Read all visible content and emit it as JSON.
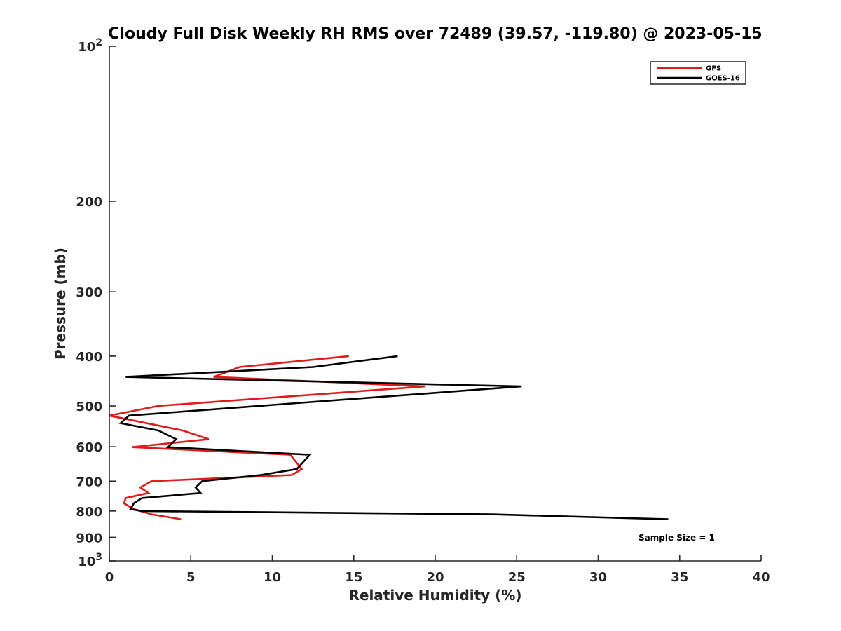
{
  "chart_data": {
    "type": "line",
    "title": "Cloudy Full Disk Weekly RH RMS over 72489 (39.57, -119.80) @ 2023-05-15",
    "xlabel": "Relative Humidity (%)",
    "ylabel": "Pressure (mb)",
    "xlim": [
      0,
      40
    ],
    "ylim": [
      100,
      1000
    ],
    "y_scale": "log",
    "y_reversed": true,
    "x_ticks": [
      0,
      5,
      10,
      15,
      20,
      25,
      30,
      35,
      40
    ],
    "x_tick_labels": [
      "0",
      "5",
      "10",
      "15",
      "20",
      "25",
      "30",
      "35",
      "40"
    ],
    "y_ticks": [
      100,
      200,
      300,
      400,
      500,
      600,
      700,
      800,
      900,
      1000
    ],
    "y_tick_labels": [
      {
        "base": "10",
        "exp": "2"
      },
      {
        "base": "200",
        "exp": ""
      },
      {
        "base": "300",
        "exp": ""
      },
      {
        "base": "400",
        "exp": ""
      },
      {
        "base": "500",
        "exp": ""
      },
      {
        "base": "600",
        "exp": ""
      },
      {
        "base": "700",
        "exp": ""
      },
      {
        "base": "800",
        "exp": ""
      },
      {
        "base": "900",
        "exp": ""
      },
      {
        "base": "10",
        "exp": "3"
      }
    ],
    "grid": false,
    "legend_position": "top-right",
    "annotation": "Sample Size = 1",
    "series": [
      {
        "name": "GFS",
        "color": "#e31a1c",
        "points": [
          [
            14.7,
            400
          ],
          [
            8.0,
            420
          ],
          [
            6.4,
            439
          ],
          [
            19.4,
            458
          ],
          [
            3.0,
            500
          ],
          [
            0.0,
            522
          ],
          [
            4.5,
            558
          ],
          [
            6.1,
            580
          ],
          [
            1.4,
            601
          ],
          [
            11.1,
            622
          ],
          [
            11.8,
            663
          ],
          [
            11.2,
            681
          ],
          [
            2.6,
            700
          ],
          [
            1.9,
            720
          ],
          [
            2.4,
            738
          ],
          [
            1.0,
            755
          ],
          [
            0.9,
            773
          ],
          [
            1.5,
            793
          ],
          [
            2.6,
            812
          ],
          [
            4.4,
            830
          ]
        ]
      },
      {
        "name": "GOES-16",
        "color": "#000000",
        "points": [
          [
            17.7,
            400
          ],
          [
            12.5,
            420
          ],
          [
            1.0,
            439
          ],
          [
            25.3,
            458
          ],
          [
            1.2,
            522
          ],
          [
            0.7,
            540
          ],
          [
            3.0,
            558
          ],
          [
            4.1,
            580
          ],
          [
            3.6,
            601
          ],
          [
            12.3,
            622
          ],
          [
            11.5,
            663
          ],
          [
            9.3,
            681
          ],
          [
            5.7,
            700
          ],
          [
            5.3,
            720
          ],
          [
            5.6,
            738
          ],
          [
            2.0,
            755
          ],
          [
            1.5,
            773
          ],
          [
            1.3,
            793
          ],
          [
            2.0,
            800
          ],
          [
            23.5,
            812
          ],
          [
            34.3,
            830
          ]
        ]
      }
    ]
  }
}
